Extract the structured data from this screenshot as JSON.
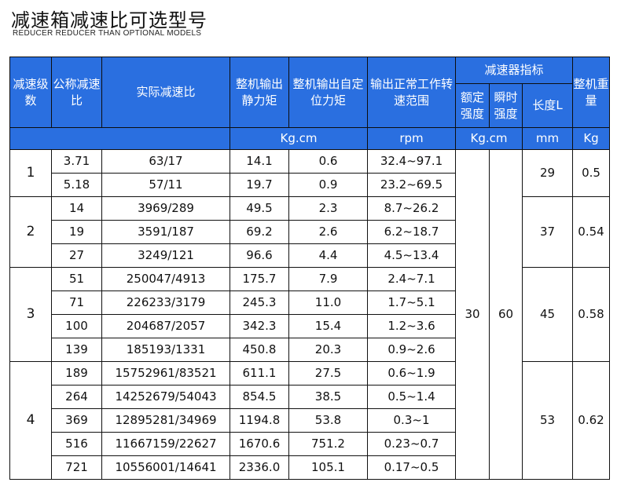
{
  "title": "减速箱减速比可选型号",
  "subtitle": "REDUCER REDUCER THAN OPTIONAL MODELS",
  "headers": {
    "stage": "减速级数",
    "nominal": "公称减速比",
    "actual": "实际减速比",
    "static_torque": "整机输出静力矩",
    "self_lock": "整机输出自定位力矩",
    "speed_range": "输出正常工作转速范围",
    "indicator_group": "减速器指标",
    "rated_strength": "额定强度",
    "instant_strength": "瞬时强度",
    "length": "长度L",
    "weight": "整机重量"
  },
  "units": {
    "torque": "Kg.cm",
    "speed": "rpm",
    "strength": "Kg.cm",
    "length": "mm",
    "weight": "Kg"
  },
  "shared": {
    "rated_strength": "30",
    "instant_strength": "60"
  },
  "groups": [
    {
      "stage": "1",
      "length": "29",
      "weight": "0.5",
      "rows": [
        {
          "nominal": "3.71",
          "actual": "63/17",
          "static": "14.1",
          "lock": "0.6",
          "speed": "32.4~97.1"
        },
        {
          "nominal": "5.18",
          "actual": "57/11",
          "static": "19.7",
          "lock": "0.9",
          "speed": "23.2~69.5"
        }
      ]
    },
    {
      "stage": "2",
      "length": "37",
      "weight": "0.54",
      "rows": [
        {
          "nominal": "14",
          "actual": "3969/289",
          "static": "49.5",
          "lock": "2.3",
          "speed": "8.7~26.2"
        },
        {
          "nominal": "19",
          "actual": "3591/187",
          "static": "69.2",
          "lock": "2.6",
          "speed": "6.2~18.7"
        },
        {
          "nominal": "27",
          "actual": "3249/121",
          "static": "96.6",
          "lock": "4.4",
          "speed": "4.5~13.4"
        }
      ]
    },
    {
      "stage": "3",
      "length": "45",
      "weight": "0.58",
      "rows": [
        {
          "nominal": "51",
          "actual": "250047/4913",
          "static": "175.7",
          "lock": "7.9",
          "speed": "2.4~7.1"
        },
        {
          "nominal": "71",
          "actual": "226233/3179",
          "static": "245.3",
          "lock": "11.0",
          "speed": "1.7~5.1"
        },
        {
          "nominal": "100",
          "actual": "204687/2057",
          "static": "342.3",
          "lock": "15.4",
          "speed": "1.2~3.6"
        },
        {
          "nominal": "139",
          "actual": "185193/1331",
          "static": "450.8",
          "lock": "20.3",
          "speed": "0.9~2.6"
        }
      ]
    },
    {
      "stage": "4",
      "length": "53",
      "weight": "0.62",
      "rows": [
        {
          "nominal": "189",
          "actual": "15752961/83521",
          "static": "611.1",
          "lock": "27.5",
          "speed": "0.6~1.9"
        },
        {
          "nominal": "264",
          "actual": "14252679/54043",
          "static": "854.5",
          "lock": "38.5",
          "speed": "0.5~1.4"
        },
        {
          "nominal": "369",
          "actual": "12895281/34969",
          "static": "1194.8",
          "lock": "53.8",
          "speed": "0.3~1"
        },
        {
          "nominal": "516",
          "actual": "11667159/22627",
          "static": "1670.6",
          "lock": "751.2",
          "speed": "0.23~0.7"
        },
        {
          "nominal": "721",
          "actual": "10556001/14641",
          "static": "2336.0",
          "lock": "105.1",
          "speed": "0.17~0.5"
        }
      ]
    }
  ]
}
